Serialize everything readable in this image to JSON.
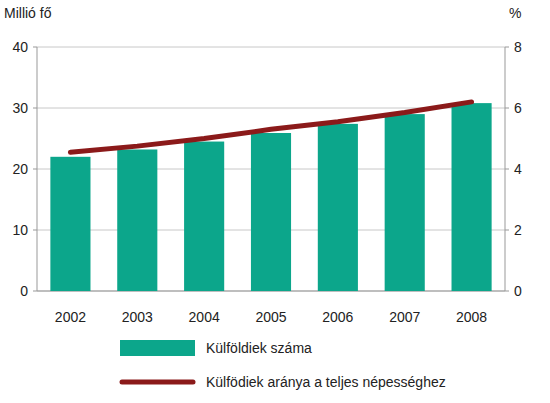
{
  "chart_data": {
    "type": "bar",
    "y_label": "Millió fő",
    "y2_label": "%",
    "categories": [
      "2002",
      "2003",
      "2004",
      "2005",
      "2006",
      "2007",
      "2008"
    ],
    "series": [
      {
        "name": "Külföldiek száma",
        "type": "bar",
        "color": "#0ca68b",
        "values": [
          22.0,
          23.2,
          24.5,
          25.9,
          27.4,
          29.0,
          30.8
        ]
      },
      {
        "name": "Külfödiek aránya a teljes népességhez",
        "type": "line",
        "axis": "y2",
        "color": "#8b1a1a",
        "values": [
          4.55,
          4.75,
          5.0,
          5.3,
          5.55,
          5.85,
          6.2
        ]
      }
    ],
    "ylim": [
      0,
      40
    ],
    "yticks": [
      0,
      10,
      20,
      30,
      40
    ],
    "y2lim": [
      0,
      8
    ],
    "y2ticks": [
      0,
      2,
      4,
      6,
      8
    ],
    "grid": true,
    "legend": "bottom"
  }
}
